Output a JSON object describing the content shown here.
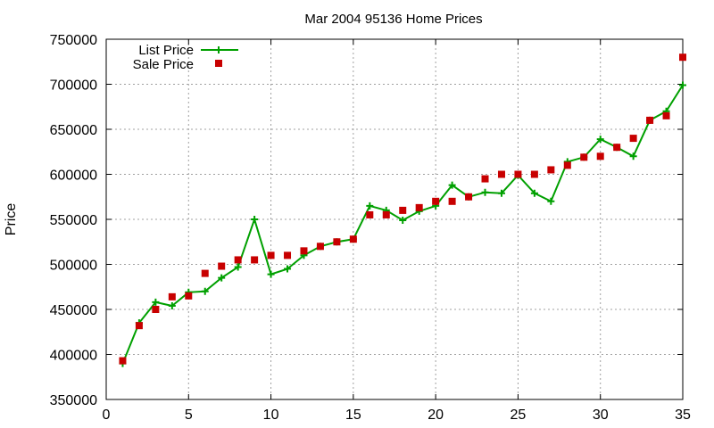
{
  "chart_data": {
    "type": "line",
    "title": "Mar 2004 95136 Home Prices",
    "xlabel": "",
    "ylabel": "Price",
    "xlim": [
      0,
      35
    ],
    "ylim": [
      350000,
      750000
    ],
    "x_ticks": [
      0,
      5,
      10,
      15,
      20,
      25,
      30,
      35
    ],
    "y_ticks": [
      350000,
      400000,
      450000,
      500000,
      550000,
      600000,
      650000,
      700000,
      750000
    ],
    "grid": true,
    "legend_position": "top-left",
    "series": [
      {
        "name": "List Price",
        "style": "line-with-plus-markers",
        "color": "#00a000",
        "x": [
          1,
          2,
          3,
          4,
          5,
          6,
          7,
          8,
          9,
          10,
          11,
          12,
          13,
          14,
          15,
          16,
          17,
          18,
          19,
          20,
          21,
          22,
          23,
          24,
          25,
          26,
          27,
          28,
          29,
          30,
          31,
          32,
          33,
          34,
          35
        ],
        "y": [
          390000,
          435000,
          458000,
          454000,
          469000,
          470000,
          485000,
          497000,
          550000,
          489000,
          495000,
          510000,
          520000,
          525000,
          528000,
          565000,
          560000,
          549000,
          559000,
          565000,
          588000,
          575000,
          580000,
          579000,
          599000,
          579000,
          570000,
          614000,
          619000,
          639000,
          630000,
          620000,
          660000,
          670000,
          699000
        ]
      },
      {
        "name": "Sale Price",
        "style": "square-markers",
        "color": "#c80000",
        "x": [
          1,
          2,
          3,
          4,
          5,
          6,
          7,
          8,
          9,
          10,
          11,
          12,
          13,
          14,
          15,
          16,
          17,
          18,
          19,
          20,
          21,
          22,
          23,
          24,
          25,
          26,
          27,
          28,
          29,
          30,
          31,
          32,
          33,
          34,
          35
        ],
        "y": [
          393000,
          432000,
          450000,
          464000,
          465000,
          490000,
          498000,
          505000,
          505000,
          510000,
          510000,
          515000,
          520000,
          525000,
          528000,
          555000,
          555000,
          560000,
          563000,
          570000,
          570000,
          575000,
          595000,
          600000,
          600000,
          600000,
          605000,
          610000,
          619000,
          620000,
          630000,
          640000,
          660000,
          665000,
          730000
        ]
      }
    ]
  }
}
